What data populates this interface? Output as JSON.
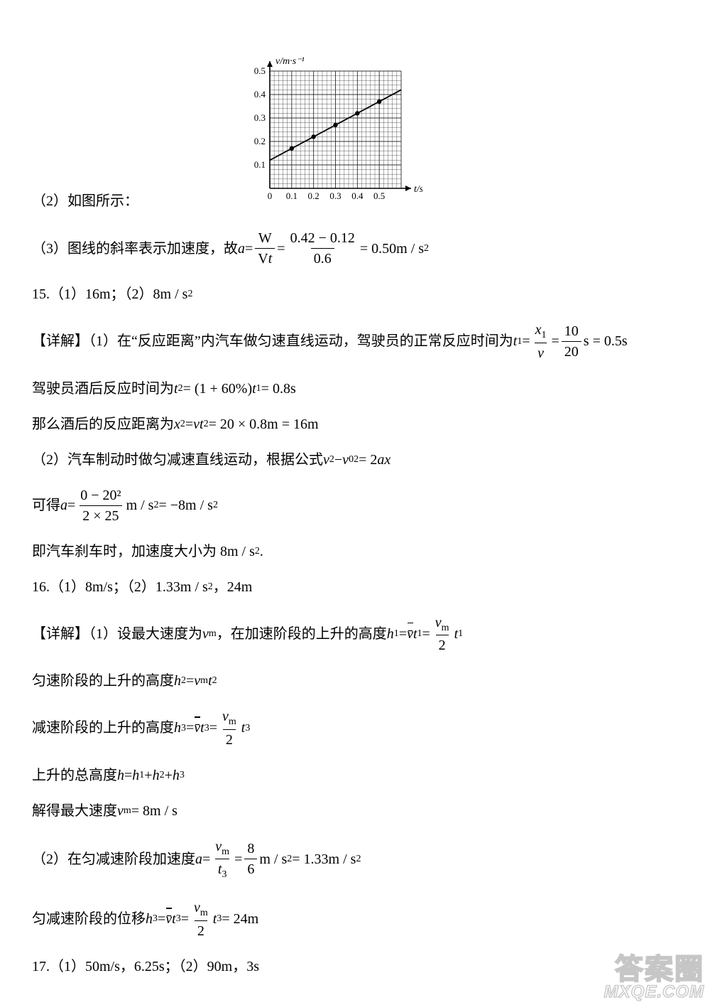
{
  "chart": {
    "type": "line",
    "x_label": "t/s",
    "y_label": "v/m·s⁻¹",
    "xlim": [
      0,
      0.6
    ],
    "ylim": [
      0,
      0.5
    ],
    "x_ticks": [
      "0",
      "0.1",
      "0.2",
      "0.3",
      "0.4",
      "0.5"
    ],
    "y_ticks": [
      "0.1",
      "0.2",
      "0.3",
      "0.4",
      "0.5"
    ],
    "grid_major_step": 0.1,
    "grid_minor_divisions": 5,
    "background_color": "#ffffff",
    "grid_color": "#333333",
    "line_color": "#000000",
    "point_color": "#000000",
    "data_points": [
      {
        "x": 0.1,
        "y": 0.17
      },
      {
        "x": 0.2,
        "y": 0.22
      },
      {
        "x": 0.3,
        "y": 0.27
      },
      {
        "x": 0.4,
        "y": 0.32
      },
      {
        "x": 0.5,
        "y": 0.37
      }
    ],
    "fit_line": {
      "x0": 0,
      "y0": 0.12,
      "x1": 0.6,
      "y1": 0.42
    },
    "label_fontsize": 13,
    "axis_fontsize": 14
  },
  "lines": {
    "l2_pre": "（2）如图所示：",
    "l3_pre": "（3）图线的斜率表示加速度，故",
    "l3_a": "a",
    "l3_eq1": " = ",
    "l3_W": "W",
    "l3_Vt": "V",
    "l3_Vt_t": "t",
    "l3_eq2": " = ",
    "l3_num2": "0.42 − 0.12",
    "l3_den2": "0.6",
    "l3_tail": " = 0.50m / s",
    "l15_hdr": "15.（1）16m；（2）8m / s",
    "l15_a": "【详解】（1）在“反应距离”内汽车做匀速直线运动，驾驶员的正常反应时间为",
    "l15_t1": "t",
    "l15_sub1": "1",
    "l15_eq": " = ",
    "l15_x1": "x",
    "l15_x1sub": "1",
    "l15_v": "v",
    "l15_ten": "10",
    "l15_twenty": "20",
    "l15_tail": "s = 0.5s",
    "l15_b": "驾驶员酒后反应时间为 ",
    "l15_b_t2": "t",
    "l15_b_s2": "2",
    "l15_b_mid": " = (1 + 60%) ",
    "l15_b_t1": "t",
    "l15_b_s1": "1",
    "l15_b_end": " = 0.8s",
    "l15_c": "那么酒后的反应距离为 ",
    "l15_c_x2": "x",
    "l15_c_s2": "2",
    "l15_c_mid": " = ",
    "l15_c_vt2": "vt",
    "l15_c_vt2s": "2",
    "l15_c_end": " = 20 × 0.8m = 16m",
    "l15_d": "（2）汽车制动时做匀减速直线运动，根据公式 ",
    "l15_d_v2": "v",
    "l15_d_sup2a": "2",
    "l15_d_minus": " − ",
    "l15_d_v0": "v",
    "l15_d_sub0": "0",
    "l15_d_sup2b": "2",
    "l15_d_eq": " = 2",
    "l15_d_ax": "ax",
    "l15_e": "可得 ",
    "l15_e_a": "a",
    "l15_e_eq": " = ",
    "l15_e_num": "0 − 20²",
    "l15_e_den": "2 × 25",
    "l15_e_mid": " m / s",
    "l15_e_end": " = −8m / s",
    "l15_f": "即汽车刹车时，加速度大小为 8m / s",
    "l15_f_dot": " .",
    "l16_hdr": "16.（1）8m/s；（2）1.33m / s",
    "l16_hdr2": " ，24m",
    "l16_a": "【详解】（1）设最大速度为 ",
    "l16_a_vm": "v",
    "l16_a_m": "m",
    "l16_a_mid": " ，在加速阶段的上升的高度 ",
    "l16_a_h1": "h",
    "l16_a_1": "1",
    "l16_a_eq": " = ",
    "l16_a_vbar": "v̄t",
    "l16_a_1b": "1",
    "l16_a_eq2": " = ",
    "l16_a_vmtop": "v",
    "l16_a_two": "2",
    "l16_a_t1": "t",
    "l16_b": "匀速阶段的上升的高度 ",
    "l16_b_h2": "h",
    "l16_b_2": "2",
    "l16_b_eq": " = ",
    "l16_b_vm": "v",
    "l16_b_m": "m",
    "l16_b_t2": "t",
    "l16_c": "减速阶段的上升的高度 ",
    "l16_c_h3": "h",
    "l16_c_3": "3",
    "l16_c_eq": " = ",
    "l16_c_vbar": "v̄t",
    "l16_c_3b": "3",
    "l16_c_eq2": " = ",
    "l16_c_t3": "t",
    "l16_d": "上升的总高度 ",
    "l16_d_h": "h",
    "l16_d_eq": " = ",
    "l16_d_h1": "h",
    "l16_d_1": "1",
    "l16_d_p1": " + ",
    "l16_d_h2": "h",
    "l16_d_2": "2",
    "l16_d_p2": " + ",
    "l16_d_h3": "h",
    "l16_d_3": "3",
    "l16_e": "解得最大速度 ",
    "l16_e_vm": "v",
    "l16_e_m": "m",
    "l16_e_end": " = 8m / s",
    "l16_f": "（2）在匀减速阶段加速度 ",
    "l16_f_a": "a",
    "l16_f_eq": " = ",
    "l16_f_vm": "v",
    "l16_f_m": "m",
    "l16_f_t3": "t",
    "l16_f_3": "3",
    "l16_f_eq2": " = ",
    "l16_f_8": "8",
    "l16_f_6": "6",
    "l16_f_mid": " m / s",
    "l16_f_end": " = 1.33m / s",
    "l16_g": "匀减速阶段的位移 ",
    "l16_g_h3": "h",
    "l16_g_3": "3",
    "l16_g_eq": " = ",
    "l16_g_vbar": "v̄t",
    "l16_g_3b": "3",
    "l16_g_eq2": " = ",
    "l16_g_t3": "t",
    "l16_g_end": " = 24m",
    "l17": "17.（1）50m/s，6.25s；（2）90m，3s",
    "sup2": "2"
  },
  "watermark": {
    "top": "答案圈",
    "bot": "MXQE.COM"
  }
}
